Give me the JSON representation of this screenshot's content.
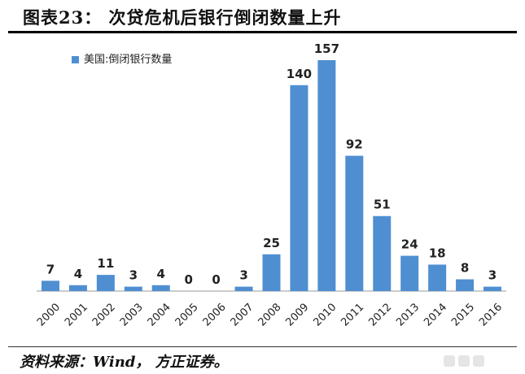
{
  "header": {
    "title": "图表23： 次贷危机后银行倒闭数量上升"
  },
  "footer": {
    "source": "资料来源：Wind， 方正证券。"
  },
  "colors": {
    "bar": "#4f8fd1",
    "axis": "#999999",
    "title_rule": "#000000"
  },
  "chart_data": {
    "type": "bar",
    "title": "",
    "xlabel": "",
    "ylabel": "",
    "legend": "top-left",
    "grid": false,
    "ylim": [
      0,
      170
    ],
    "categories": [
      "2000",
      "2001",
      "2002",
      "2003",
      "2004",
      "2005",
      "2006",
      "2007",
      "2008",
      "2009",
      "2010",
      "2011",
      "2012",
      "2013",
      "2014",
      "2015",
      "2016"
    ],
    "series": [
      {
        "name": "美国:倒闭银行数量",
        "values": [
          7,
          4,
          11,
          3,
          4,
          0,
          0,
          3,
          25,
          140,
          157,
          92,
          51,
          24,
          18,
          8,
          3
        ]
      }
    ]
  }
}
